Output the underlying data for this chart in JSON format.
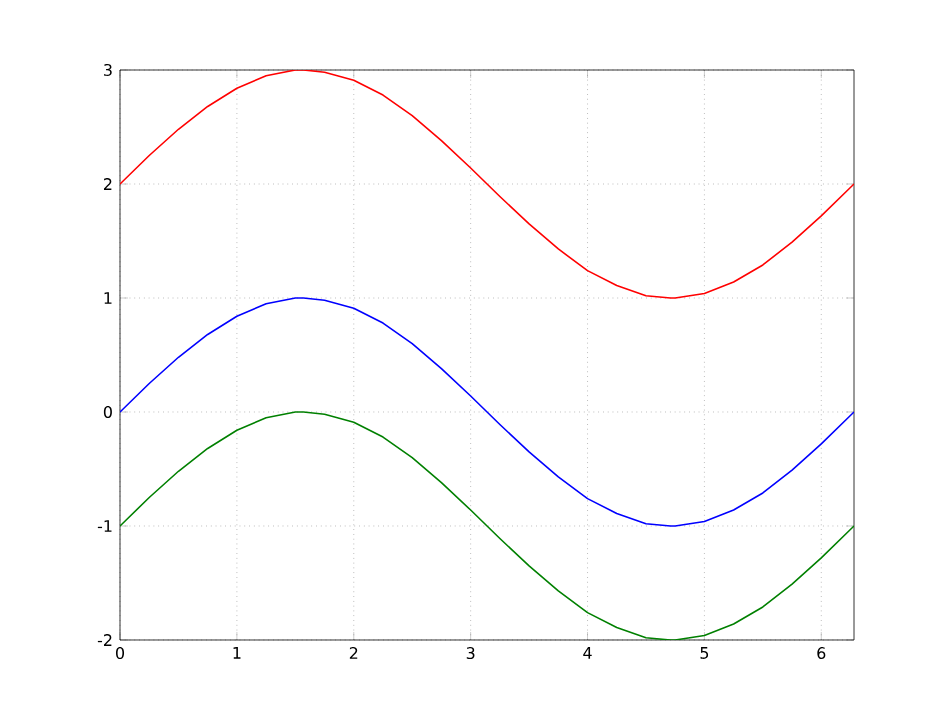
{
  "chart_data": {
    "type": "line",
    "x": [
      0,
      0.25,
      0.5,
      0.75,
      1,
      1.25,
      1.5,
      1.57,
      1.75,
      2,
      2.25,
      2.5,
      2.75,
      3,
      3.25,
      3.5,
      3.75,
      4,
      4.25,
      4.5,
      4.71,
      4.75,
      5,
      5.25,
      5.5,
      5.75,
      6,
      6.28
    ],
    "series": [
      {
        "color": "#ff0000",
        "values": [
          2,
          2.25,
          2.48,
          2.68,
          2.84,
          2.95,
          3,
          3,
          2.98,
          2.91,
          2.78,
          2.6,
          2.38,
          2.14,
          1.89,
          1.65,
          1.43,
          1.24,
          1.11,
          1.02,
          1,
          1,
          1.04,
          1.14,
          1.29,
          1.49,
          1.72,
          2
        ]
      },
      {
        "color": "#0000ff",
        "values": [
          0,
          0.25,
          0.48,
          0.68,
          0.84,
          0.95,
          1,
          1,
          0.98,
          0.91,
          0.78,
          0.6,
          0.38,
          0.14,
          -0.11,
          -0.35,
          -0.57,
          -0.76,
          -0.89,
          -0.98,
          -1,
          -1,
          -0.96,
          -0.86,
          -0.71,
          -0.51,
          -0.28,
          0
        ]
      },
      {
        "color": "#008000",
        "values": [
          -1,
          -0.75,
          -0.52,
          -0.32,
          -0.16,
          -0.05,
          0,
          0,
          -0.02,
          -0.09,
          -0.22,
          -0.4,
          -0.62,
          -0.86,
          -1.11,
          -1.35,
          -1.57,
          -1.76,
          -1.89,
          -1.98,
          -2,
          -2,
          -1.96,
          -1.86,
          -1.71,
          -1.51,
          -1.28,
          -1
        ]
      }
    ],
    "xlim": [
      0,
      6.28
    ],
    "ylim": [
      -2,
      3
    ],
    "xticks": [
      0,
      1,
      2,
      3,
      4,
      5,
      6
    ],
    "yticks": [
      -2,
      -1,
      0,
      1,
      2,
      3
    ],
    "grid": true
  }
}
